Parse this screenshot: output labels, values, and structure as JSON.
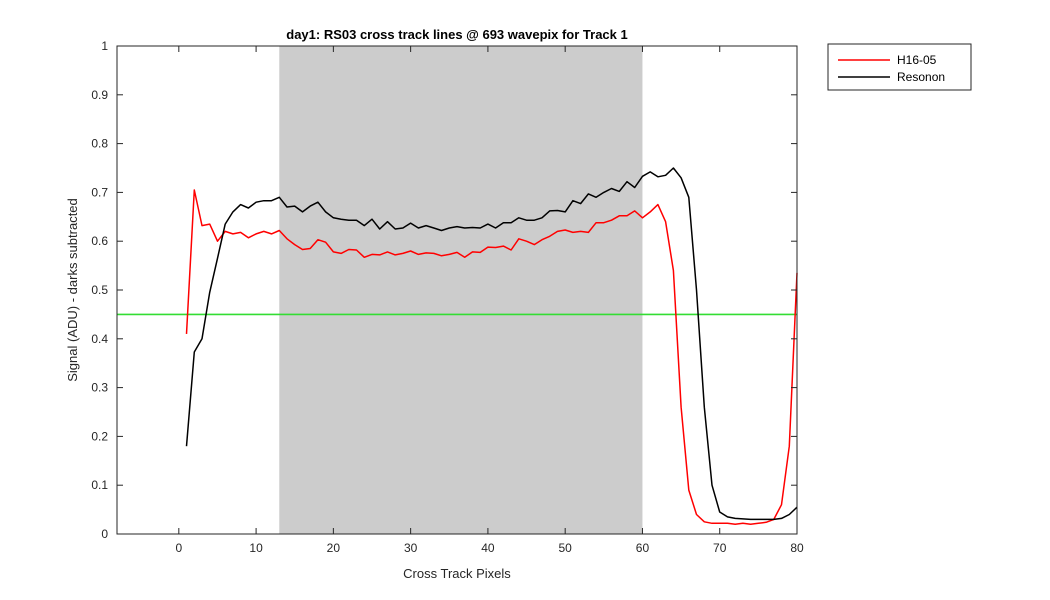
{
  "chart_data": {
    "type": "line",
    "title": "day1: RS03  cross track lines @ 693 wavepix for Track 1",
    "xlabel": "Cross Track Pixels",
    "ylabel": "Signal (ADU) - darks subtracted",
    "xlim": [
      -8,
      80
    ],
    "ylim": [
      0,
      1
    ],
    "xticks": [
      "0",
      "10",
      "20",
      "30",
      "40",
      "50",
      "60",
      "70",
      "80"
    ],
    "yticks": [
      "0",
      "0.1",
      "0.2",
      "0.3",
      "0.4",
      "0.5",
      "0.6",
      "0.7",
      "0.8",
      "0.9",
      "1"
    ],
    "grid": false,
    "legend_position": "outside-top-right",
    "shaded_region": {
      "x_start": 13,
      "x_end": 60,
      "color": "#cccccc"
    },
    "reference_line": {
      "y": 0.45,
      "color": "#33dd33"
    },
    "series": [
      {
        "name": "H16-05",
        "color": "#ff0000",
        "x": [
          1,
          2,
          3,
          4,
          5,
          6,
          7,
          8,
          9,
          10,
          11,
          12,
          13,
          14,
          15,
          16,
          17,
          18,
          19,
          20,
          21,
          22,
          23,
          24,
          25,
          26,
          27,
          28,
          29,
          30,
          31,
          32,
          33,
          34,
          35,
          36,
          37,
          38,
          39,
          40,
          41,
          42,
          43,
          44,
          45,
          46,
          47,
          48,
          49,
          50,
          51,
          52,
          53,
          54,
          55,
          56,
          57,
          58,
          59,
          60,
          61,
          62,
          63,
          64,
          65,
          66,
          67,
          68,
          69,
          70,
          71,
          72,
          73,
          74,
          75,
          76,
          77,
          78,
          79,
          80
        ],
        "y": [
          0.41,
          0.705,
          0.632,
          0.635,
          0.6,
          0.62,
          0.615,
          0.618,
          0.607,
          0.615,
          0.62,
          0.615,
          0.622,
          0.605,
          0.593,
          0.583,
          0.585,
          0.603,
          0.598,
          0.578,
          0.575,
          0.583,
          0.582,
          0.567,
          0.573,
          0.572,
          0.578,
          0.572,
          0.575,
          0.58,
          0.573,
          0.576,
          0.575,
          0.57,
          0.573,
          0.577,
          0.567,
          0.578,
          0.577,
          0.588,
          0.587,
          0.59,
          0.582,
          0.605,
          0.6,
          0.593,
          0.603,
          0.61,
          0.62,
          0.623,
          0.618,
          0.62,
          0.618,
          0.638,
          0.638,
          0.643,
          0.652,
          0.652,
          0.662,
          0.648,
          0.66,
          0.675,
          0.64,
          0.54,
          0.26,
          0.09,
          0.04,
          0.025,
          0.022,
          0.022,
          0.022,
          0.02,
          0.022,
          0.02,
          0.022,
          0.024,
          0.03,
          0.06,
          0.18,
          0.535
        ]
      },
      {
        "name": "Resonon",
        "color": "#000000",
        "x": [
          1,
          2,
          3,
          4,
          5,
          6,
          7,
          8,
          9,
          10,
          11,
          12,
          13,
          14,
          15,
          16,
          17,
          18,
          19,
          20,
          21,
          22,
          23,
          24,
          25,
          26,
          27,
          28,
          29,
          30,
          31,
          32,
          33,
          34,
          35,
          36,
          37,
          38,
          39,
          40,
          41,
          42,
          43,
          44,
          45,
          46,
          47,
          48,
          49,
          50,
          51,
          52,
          53,
          54,
          55,
          56,
          57,
          58,
          59,
          60,
          61,
          62,
          63,
          64,
          65,
          66,
          67,
          68,
          69,
          70,
          71,
          72,
          73,
          74,
          75,
          76,
          77,
          78,
          79,
          80
        ],
        "y": [
          0.18,
          0.373,
          0.4,
          0.495,
          0.565,
          0.635,
          0.66,
          0.675,
          0.668,
          0.68,
          0.683,
          0.683,
          0.69,
          0.67,
          0.672,
          0.66,
          0.672,
          0.68,
          0.66,
          0.648,
          0.645,
          0.643,
          0.643,
          0.632,
          0.645,
          0.625,
          0.64,
          0.625,
          0.627,
          0.637,
          0.627,
          0.632,
          0.627,
          0.622,
          0.627,
          0.63,
          0.627,
          0.628,
          0.627,
          0.635,
          0.627,
          0.638,
          0.638,
          0.648,
          0.643,
          0.643,
          0.648,
          0.662,
          0.663,
          0.66,
          0.683,
          0.677,
          0.697,
          0.69,
          0.7,
          0.708,
          0.702,
          0.722,
          0.71,
          0.733,
          0.742,
          0.732,
          0.735,
          0.75,
          0.73,
          0.69,
          0.5,
          0.26,
          0.1,
          0.045,
          0.035,
          0.032,
          0.031,
          0.03,
          0.03,
          0.03,
          0.03,
          0.032,
          0.04,
          0.055
        ]
      }
    ]
  }
}
